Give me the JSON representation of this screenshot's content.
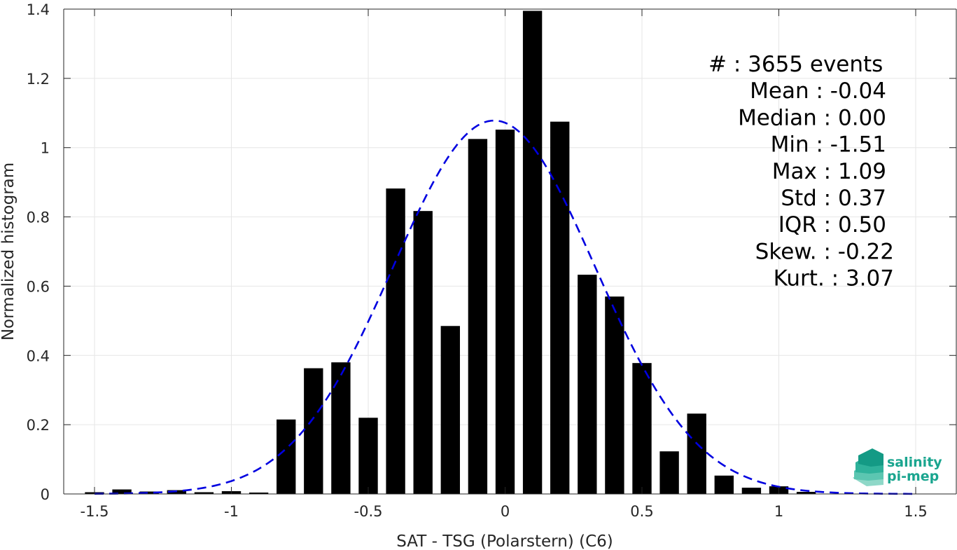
{
  "chart_data": {
    "type": "bar",
    "xlabel": "SAT - TSG (Polarstern) (C6)",
    "ylabel": "Normalized histogram",
    "xlim": [
      -1.6,
      1.6
    ],
    "ylim": [
      0,
      1.4
    ],
    "xticks": [
      -1.5,
      -1,
      -0.5,
      0,
      0.5,
      1,
      1.5
    ],
    "xtick_labels": [
      "-1.5",
      "-1",
      "-0.5",
      "0",
      "0.5",
      "1",
      "1.5"
    ],
    "yticks": [
      0,
      0.2,
      0.4,
      0.6,
      0.8,
      1,
      1.2,
      1.4
    ],
    "ytick_labels": [
      "0",
      "0.2",
      "0.4",
      "0.6",
      "0.8",
      "1",
      "1.2",
      "1.4"
    ],
    "grid": true,
    "bar_color": "#000000",
    "bar_width": 0.07,
    "bars": {
      "x": [
        -1.5,
        -1.4,
        -1.3,
        -1.2,
        -1.1,
        -1.0,
        -0.9,
        -0.8,
        -0.7,
        -0.6,
        -0.5,
        -0.4,
        -0.3,
        -0.2,
        -0.1,
        0.0,
        0.1,
        0.2,
        0.3,
        0.4,
        0.5,
        0.6,
        0.7,
        0.8,
        0.9,
        1.0,
        1.1
      ],
      "values": [
        0.005,
        0.013,
        0.007,
        0.011,
        0.005,
        0.008,
        0.004,
        0.215,
        0.363,
        0.38,
        0.22,
        0.882,
        0.817,
        0.485,
        1.025,
        1.052,
        1.395,
        1.075,
        0.633,
        0.57,
        0.378,
        0.123,
        0.232,
        0.053,
        0.018,
        0.022,
        0.006
      ]
    },
    "fit_curve": {
      "style": "dashed",
      "color": "#0000e0",
      "mean": -0.04,
      "std": 0.37,
      "x_range": [
        -1.5,
        1.5
      ]
    },
    "stats": [
      {
        "label": "#  : 3655 events",
        "anchor": "start"
      },
      {
        "label": "Mean : -0.04",
        "anchor": "end"
      },
      {
        "label": "Median : 0.00",
        "anchor": "end"
      },
      {
        "label": "Min : -1.51",
        "anchor": "end"
      },
      {
        "label": "Max : 1.09",
        "anchor": "end"
      },
      {
        "label": "Std : 0.37",
        "anchor": "end"
      },
      {
        "label": "IQR : 0.50",
        "anchor": "end"
      },
      {
        "label": "Skew. : -0.22",
        "anchor": "end"
      },
      {
        "label": "Kurt. : 3.07",
        "anchor": "end"
      }
    ]
  },
  "logo": {
    "line1": "salinity",
    "line2": "pi-mep",
    "color": "#1aa58f"
  }
}
